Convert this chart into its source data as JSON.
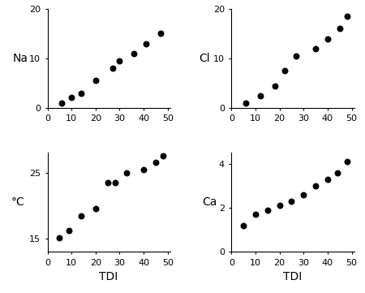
{
  "na_x": [
    6,
    10,
    14,
    20,
    27,
    30,
    36,
    41,
    47
  ],
  "na_y": [
    1.0,
    2.2,
    3.0,
    5.5,
    8.0,
    9.5,
    11.0,
    13.0,
    15.0
  ],
  "cl_x": [
    6,
    12,
    18,
    22,
    27,
    35,
    40,
    45,
    48
  ],
  "cl_y": [
    1.0,
    2.5,
    4.5,
    7.5,
    10.5,
    12.0,
    14.0,
    16.0,
    18.5
  ],
  "tc_x": [
    5,
    9,
    14,
    20,
    25,
    28,
    33,
    40,
    45,
    48
  ],
  "tc_y": [
    15.2,
    16.2,
    18.5,
    19.5,
    23.5,
    23.5,
    25.0,
    25.5,
    26.5,
    27.5
  ],
  "ca_x": [
    5,
    10,
    15,
    20,
    25,
    30,
    35,
    40,
    44,
    48
  ],
  "ca_y": [
    1.2,
    1.7,
    1.9,
    2.1,
    2.3,
    2.6,
    3.0,
    3.3,
    3.6,
    4.1
  ],
  "dot_color": "#000000",
  "dot_size": 22,
  "na_ylabel": "Na",
  "cl_ylabel": "Cl",
  "tc_ylabel": "°C",
  "ca_ylabel": "Ca",
  "xlabel": "TDI",
  "na_ylim": [
    0,
    20
  ],
  "na_yticks": [
    0,
    10,
    20
  ],
  "cl_ylim": [
    0,
    20
  ],
  "cl_yticks": [
    0,
    10,
    20
  ],
  "tc_ylim": [
    13,
    28
  ],
  "tc_yticks": [
    15,
    25
  ],
  "ca_ylim": [
    0,
    4.5
  ],
  "ca_yticks": [
    0,
    2,
    4
  ],
  "xlim": [
    0,
    51
  ],
  "xticks": [
    0,
    10,
    20,
    30,
    40,
    50
  ]
}
